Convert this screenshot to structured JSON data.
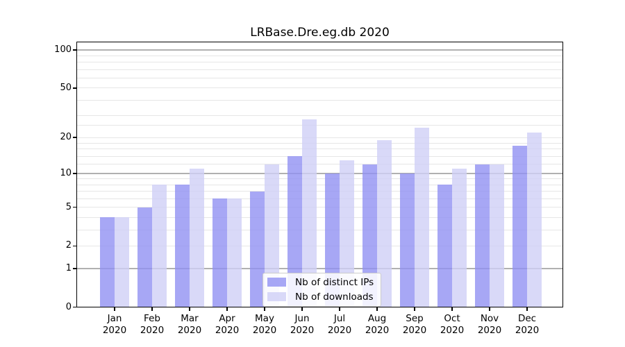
{
  "title": "LRBase.Dre.eg.db 2020",
  "chart_data": {
    "type": "bar",
    "title": "LRBase.Dre.eg.db 2020",
    "xlabel": "",
    "ylabel": "",
    "year": "2020",
    "months": [
      "Jan",
      "Feb",
      "Mar",
      "Apr",
      "May",
      "Jun",
      "Jul",
      "Aug",
      "Sep",
      "Oct",
      "Nov",
      "Dec"
    ],
    "categories": [
      "Jan 2020",
      "Feb 2020",
      "Mar 2020",
      "Apr 2020",
      "May 2020",
      "Jun 2020",
      "Jul 2020",
      "Aug 2020",
      "Sep 2020",
      "Oct 2020",
      "Nov 2020",
      "Dec 2020"
    ],
    "series": [
      {
        "name": "Nb of distinct IPs",
        "color": "#a7a7f4",
        "fill_rgba": "rgba(145,145,242,0.8)",
        "values": [
          4,
          5,
          8,
          6,
          7,
          14,
          10,
          12,
          10,
          8,
          12,
          17
        ]
      },
      {
        "name": "Nb of downloads",
        "color": "#d9d9f7",
        "fill_rgba": "rgba(208,208,246,0.8)",
        "values": [
          4,
          8,
          11,
          6,
          12,
          28,
          13,
          19,
          24,
          11,
          12,
          22
        ]
      }
    ],
    "y_scale": "log10(1+x)",
    "y_ticks": [
      0,
      1,
      2,
      5,
      10,
      20,
      50,
      100
    ],
    "y_minor_ticks": [
      3,
      4,
      6,
      7,
      8,
      9,
      12,
      14,
      16,
      18,
      25,
      30,
      40,
      60,
      70,
      80,
      90
    ],
    "y_decade_ticks": [
      1,
      10,
      100
    ],
    "ylim": [
      0,
      117
    ],
    "grid": true,
    "legend_position": "lower center inside"
  },
  "colors": {
    "grid_major": "#b0b0b0",
    "grid_minor": "#e6e6e6",
    "axis": "#000000",
    "background": "#ffffff",
    "legend_border": "#cccccc"
  }
}
